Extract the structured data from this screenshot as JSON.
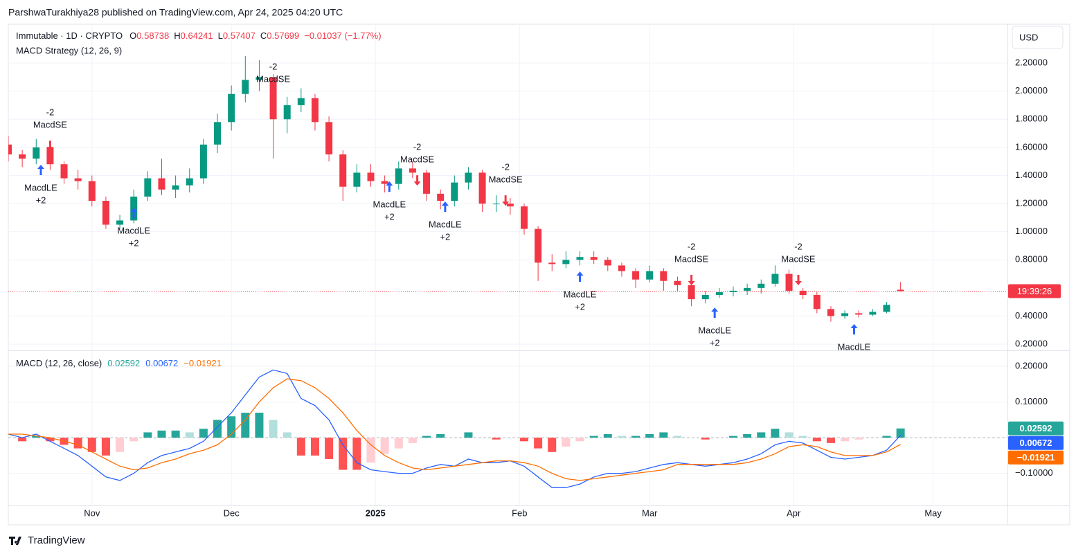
{
  "header": {
    "text": "ParshwaTurakhiya28 published on TradingView.com, Apr 24, 2025 04:20 UTC"
  },
  "footer": {
    "brand": "TradingView"
  },
  "chart_data": [
    {
      "type": "candlestick",
      "symbol": "Immutable · 1D · CRYPTO",
      "ohlc_labels": [
        {
          "key": "O",
          "value": "0.58738"
        },
        {
          "key": "H",
          "value": "0.64241"
        },
        {
          "key": "L",
          "value": "0.57407"
        },
        {
          "key": "C",
          "value": "0.57699"
        }
      ],
      "change": "−0.01037 (−1.77%)",
      "study": "MACD Strategy (12, 26, 9)",
      "currency": "USD",
      "countdown": "19:39:26",
      "up_color": "#089981",
      "down_color": "#f23645",
      "long_color": "#2962ff",
      "short_color": "#f23645",
      "grid": true,
      "xlim": [
        0,
        215
      ],
      "ylim": [
        0.161,
        2.476
      ],
      "yticks": [
        {
          "value": 0.2,
          "label": "0.20000"
        },
        {
          "value": 0.4,
          "label": "0.40000"
        },
        {
          "value": 0.8,
          "label": "0.80000"
        },
        {
          "value": 1.0,
          "label": "1.00000"
        },
        {
          "value": 1.2,
          "label": "1.20000"
        },
        {
          "value": 1.4,
          "label": "1.40000"
        },
        {
          "value": 1.6,
          "label": "1.60000"
        },
        {
          "value": 1.8,
          "label": "1.80000"
        },
        {
          "value": 2.0,
          "label": "2.00000"
        },
        {
          "value": 2.2,
          "label": "2.20000"
        }
      ],
      "x": [
        0,
        3,
        6,
        9,
        12,
        15,
        18,
        21,
        24,
        27,
        30,
        33,
        36,
        39,
        42,
        45,
        48,
        51,
        54,
        57,
        60,
        63,
        66,
        69,
        72,
        75,
        78,
        81,
        84,
        87,
        90,
        93,
        96,
        99,
        102,
        105,
        108,
        111,
        114,
        117,
        120,
        123,
        126,
        129,
        132,
        135,
        138,
        141,
        144,
        147,
        150,
        153,
        156,
        159,
        162,
        165,
        168,
        171,
        174,
        177,
        180,
        183,
        186,
        189,
        192
      ],
      "ohlc": [
        [
          1.62,
          1.68,
          1.5,
          1.55
        ],
        [
          1.55,
          1.58,
          1.46,
          1.52
        ],
        [
          1.52,
          1.66,
          1.48,
          1.6
        ],
        [
          1.6,
          1.64,
          1.44,
          1.48
        ],
        [
          1.48,
          1.5,
          1.34,
          1.38
        ],
        [
          1.38,
          1.44,
          1.3,
          1.36
        ],
        [
          1.36,
          1.4,
          1.18,
          1.22
        ],
        [
          1.22,
          1.25,
          1.02,
          1.05
        ],
        [
          1.05,
          1.12,
          1.02,
          1.08
        ],
        [
          1.08,
          1.3,
          1.06,
          1.25
        ],
        [
          1.25,
          1.43,
          1.22,
          1.38
        ],
        [
          1.38,
          1.52,
          1.26,
          1.3
        ],
        [
          1.3,
          1.4,
          1.24,
          1.33
        ],
        [
          1.33,
          1.45,
          1.28,
          1.38
        ],
        [
          1.38,
          1.66,
          1.34,
          1.62
        ],
        [
          1.62,
          1.84,
          1.56,
          1.78
        ],
        [
          1.78,
          2.04,
          1.72,
          1.98
        ],
        [
          1.98,
          2.25,
          1.92,
          2.08
        ],
        [
          2.08,
          2.22,
          2.0,
          2.1
        ],
        [
          2.1,
          2.12,
          1.52,
          1.8
        ],
        [
          1.8,
          1.96,
          1.7,
          1.9
        ],
        [
          1.9,
          2.02,
          1.85,
          1.95
        ],
        [
          1.95,
          1.98,
          1.72,
          1.78
        ],
        [
          1.78,
          1.82,
          1.5,
          1.55
        ],
        [
          1.55,
          1.58,
          1.22,
          1.32
        ],
        [
          1.32,
          1.48,
          1.28,
          1.42
        ],
        [
          1.42,
          1.48,
          1.32,
          1.36
        ],
        [
          1.36,
          1.4,
          1.28,
          1.34
        ],
        [
          1.34,
          1.5,
          1.3,
          1.45
        ],
        [
          1.45,
          1.5,
          1.38,
          1.42
        ],
        [
          1.42,
          1.44,
          1.22,
          1.27
        ],
        [
          1.27,
          1.3,
          1.16,
          1.22
        ],
        [
          1.22,
          1.4,
          1.18,
          1.35
        ],
        [
          1.35,
          1.46,
          1.3,
          1.42
        ],
        [
          1.42,
          1.44,
          1.14,
          1.2
        ],
        [
          1.2,
          1.26,
          1.14,
          1.2
        ],
        [
          1.2,
          1.24,
          1.12,
          1.18
        ],
        [
          1.18,
          1.2,
          0.98,
          1.02
        ],
        [
          1.02,
          1.04,
          0.65,
          0.78
        ],
        [
          0.78,
          0.84,
          0.72,
          0.77
        ],
        [
          0.77,
          0.86,
          0.74,
          0.8
        ],
        [
          0.8,
          0.86,
          0.76,
          0.82
        ],
        [
          0.82,
          0.86,
          0.77,
          0.8
        ],
        [
          0.8,
          0.82,
          0.72,
          0.76
        ],
        [
          0.76,
          0.78,
          0.68,
          0.72
        ],
        [
          0.72,
          0.74,
          0.6,
          0.66
        ],
        [
          0.66,
          0.76,
          0.64,
          0.72
        ],
        [
          0.72,
          0.74,
          0.58,
          0.65
        ],
        [
          0.65,
          0.68,
          0.58,
          0.62
        ],
        [
          0.62,
          0.64,
          0.47,
          0.52
        ],
        [
          0.52,
          0.58,
          0.49,
          0.55
        ],
        [
          0.55,
          0.6,
          0.53,
          0.57
        ],
        [
          0.57,
          0.61,
          0.54,
          0.58
        ],
        [
          0.58,
          0.63,
          0.55,
          0.6
        ],
        [
          0.6,
          0.66,
          0.56,
          0.63
        ],
        [
          0.63,
          0.76,
          0.61,
          0.7
        ],
        [
          0.7,
          0.73,
          0.56,
          0.58
        ],
        [
          0.58,
          0.6,
          0.52,
          0.55
        ],
        [
          0.55,
          0.57,
          0.42,
          0.45
        ],
        [
          0.45,
          0.47,
          0.36,
          0.4
        ],
        [
          0.4,
          0.44,
          0.38,
          0.42
        ],
        [
          0.42,
          0.44,
          0.39,
          0.41
        ],
        [
          0.41,
          0.45,
          0.4,
          0.43
        ],
        [
          0.43,
          0.5,
          0.42,
          0.48
        ],
        [
          0.58738,
          0.64241,
          0.57407,
          0.57699
        ]
      ],
      "signals": [
        {
          "x": 7,
          "price": 1.476,
          "side": "long",
          "label": "MacdLE",
          "qty": "+2"
        },
        {
          "x": 9,
          "price": 1.574,
          "side": "short",
          "label": "MacdSE",
          "qty": "-2"
        },
        {
          "x": 27,
          "price": 1.17,
          "side": "long",
          "label": "MacdLE",
          "qty": "+2"
        },
        {
          "x": 57,
          "price": 1.9,
          "side": "short",
          "label": "MacdSE",
          "qty": "-2"
        },
        {
          "x": 82,
          "price": 1.358,
          "side": "long",
          "label": "MacdLE",
          "qty": "+2"
        },
        {
          "x": 88,
          "price": 1.328,
          "side": "short",
          "label": "MacdSE",
          "qty": "-2"
        },
        {
          "x": 94,
          "price": 1.215,
          "side": "long",
          "label": "MacdLE",
          "qty": "+2"
        },
        {
          "x": 107,
          "price": 1.185,
          "side": "short",
          "label": "MacdSE",
          "qty": "-2"
        },
        {
          "x": 123,
          "price": 0.717,
          "side": "long",
          "label": "MacdLE",
          "qty": "+2"
        },
        {
          "x": 147,
          "price": 0.619,
          "side": "short",
          "label": "MacdSE",
          "qty": "-2"
        },
        {
          "x": 152,
          "price": 0.461,
          "side": "long",
          "label": "MacdLE",
          "qty": "+2"
        },
        {
          "x": 170,
          "price": 0.619,
          "side": "short",
          "label": "MacdSE",
          "qty": "-2"
        },
        {
          "x": 182,
          "price": 0.343,
          "side": "long",
          "label": "MacdLE"
        }
      ]
    },
    {
      "type": "macd",
      "title": "MACD (12, 26, close)",
      "legend_values": [
        "0.02592",
        "0.00672",
        "−0.01921"
      ],
      "grid": true,
      "xlim": [
        0,
        215
      ],
      "ylim": [
        -0.19,
        0.243
      ],
      "yticks": [
        {
          "value": -0.1,
          "label": "−0.10000"
        },
        {
          "value": 0.1,
          "label": "0.10000"
        },
        {
          "value": 0.2,
          "label": "0.20000"
        }
      ],
      "xticks": [
        {
          "value": 18,
          "label": "Nov"
        },
        {
          "value": 48,
          "label": "Dec"
        },
        {
          "value": 79,
          "label": "2025"
        },
        {
          "value": 110,
          "label": "Feb"
        },
        {
          "value": 138,
          "label": "Mar"
        },
        {
          "value": 169,
          "label": "Apr"
        },
        {
          "value": 199,
          "label": "May"
        }
      ],
      "x": [
        0,
        3,
        6,
        9,
        12,
        15,
        18,
        21,
        24,
        27,
        30,
        33,
        36,
        39,
        42,
        45,
        48,
        51,
        54,
        57,
        60,
        63,
        66,
        69,
        72,
        75,
        78,
        81,
        84,
        87,
        90,
        93,
        96,
        99,
        102,
        105,
        108,
        111,
        114,
        117,
        120,
        123,
        126,
        129,
        132,
        135,
        138,
        141,
        144,
        147,
        150,
        153,
        156,
        159,
        162,
        165,
        168,
        171,
        174,
        177,
        180,
        183,
        186,
        189,
        192
      ],
      "histogram": {
        "colors": [
          "#26a69a",
          "#b2dfdb",
          "#ffcdd2",
          "#ff5252"
        ],
        "values": [
          0,
          -0.01,
          0.005,
          -0.01,
          -0.02,
          -0.03,
          -0.04,
          -0.05,
          -0.04,
          -0.01,
          0.015,
          0.02,
          0.02,
          0.015,
          0.025,
          0.05,
          0.06,
          0.07,
          0.07,
          0.05,
          0.015,
          -0.05,
          -0.05,
          -0.06,
          -0.09,
          -0.09,
          -0.07,
          -0.045,
          -0.03,
          -0.015,
          0.005,
          0.01,
          0,
          0.015,
          0,
          -0.005,
          0,
          -0.01,
          -0.03,
          -0.04,
          -0.025,
          -0.01,
          0.005,
          0.01,
          0.005,
          0.005,
          0.01,
          0.015,
          0.005,
          0,
          -0.005,
          0,
          0.005,
          0.01,
          0.015,
          0.025,
          0.015,
          0.005,
          -0.01,
          -0.015,
          -0.01,
          -0.005,
          0,
          0.005,
          0.02592
        ]
      },
      "macd": {
        "color": "#2962ff",
        "values": [
          0.01,
          0,
          0.01,
          -0.01,
          -0.03,
          -0.05,
          -0.08,
          -0.11,
          -0.12,
          -0.1,
          -0.07,
          -0.05,
          -0.04,
          -0.03,
          -0.01,
          0.03,
          0.07,
          0.12,
          0.17,
          0.19,
          0.18,
          0.11,
          0.09,
          0.05,
          -0.02,
          -0.07,
          -0.09,
          -0.095,
          -0.1,
          -0.1,
          -0.085,
          -0.075,
          -0.08,
          -0.06,
          -0.07,
          -0.07,
          -0.065,
          -0.08,
          -0.11,
          -0.14,
          -0.14,
          -0.13,
          -0.11,
          -0.1,
          -0.1,
          -0.095,
          -0.085,
          -0.075,
          -0.07,
          -0.075,
          -0.08,
          -0.075,
          -0.07,
          -0.06,
          -0.045,
          -0.02,
          -0.01,
          -0.015,
          -0.035,
          -0.055,
          -0.06,
          -0.055,
          -0.05,
          -0.035,
          0.00672
        ]
      },
      "signal": {
        "color": "#ff6d00",
        "values": [
          0.01,
          0.01,
          0.005,
          0,
          -0.01,
          -0.02,
          -0.04,
          -0.06,
          -0.08,
          -0.09,
          -0.085,
          -0.07,
          -0.06,
          -0.045,
          -0.035,
          -0.02,
          0.01,
          0.05,
          0.1,
          0.14,
          0.165,
          0.16,
          0.14,
          0.11,
          0.07,
          0.02,
          -0.02,
          -0.05,
          -0.07,
          -0.085,
          -0.09,
          -0.085,
          -0.08,
          -0.075,
          -0.07,
          -0.065,
          -0.065,
          -0.07,
          -0.08,
          -0.1,
          -0.115,
          -0.12,
          -0.115,
          -0.11,
          -0.105,
          -0.1,
          -0.095,
          -0.09,
          -0.075,
          -0.075,
          -0.075,
          -0.075,
          -0.075,
          -0.07,
          -0.06,
          -0.045,
          -0.025,
          -0.02,
          -0.025,
          -0.04,
          -0.05,
          -0.05,
          -0.05,
          -0.04,
          -0.01921
        ]
      }
    }
  ]
}
